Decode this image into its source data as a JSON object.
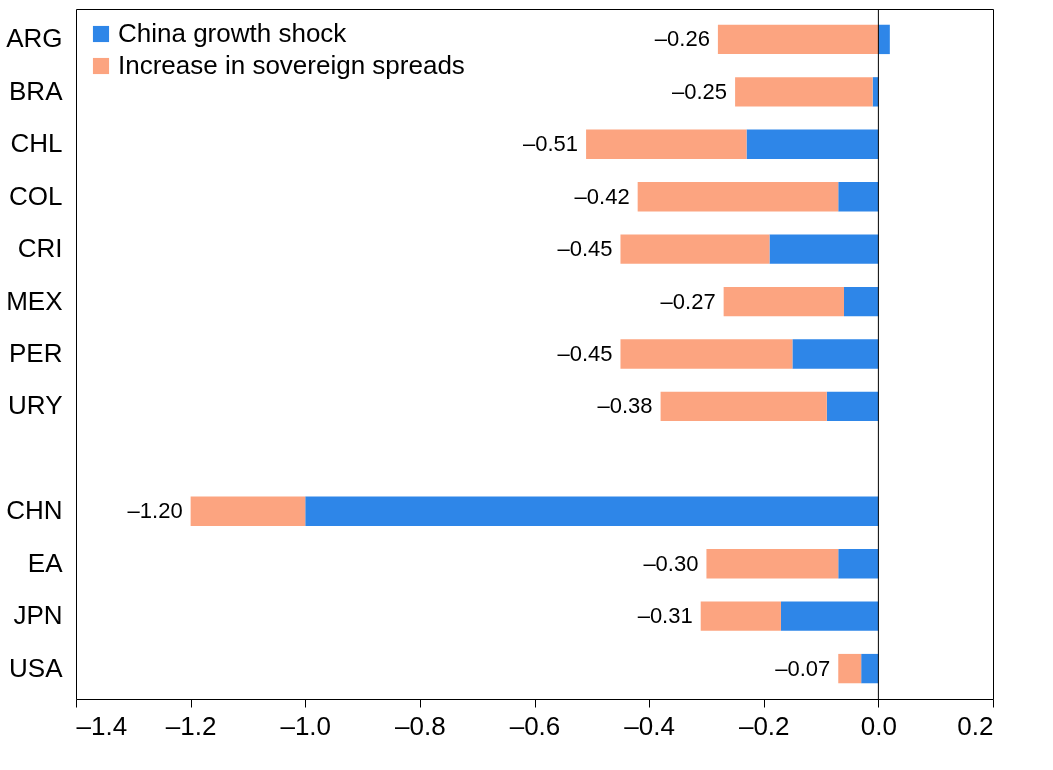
{
  "chart_data": {
    "type": "bar",
    "orientation": "horizontal",
    "stacked": true,
    "categories": [
      "ARG",
      "BRA",
      "CHL",
      "COL",
      "CRI",
      "MEX",
      "PER",
      "URY",
      null,
      "CHN",
      "EA",
      "JPN",
      "USA"
    ],
    "series": [
      {
        "name": "China growth shock",
        "color": "#2e86e8",
        "values": [
          0.02,
          -0.01,
          -0.23,
          -0.07,
          -0.19,
          -0.06,
          -0.15,
          -0.09,
          null,
          -1.0,
          -0.07,
          -0.17,
          -0.03
        ]
      },
      {
        "name": "Increase in sovereign spreads",
        "color": "#fca480",
        "values": [
          -0.28,
          -0.24,
          -0.28,
          -0.35,
          -0.26,
          -0.21,
          -0.3,
          -0.29,
          null,
          -0.2,
          -0.23,
          -0.14,
          -0.04
        ]
      }
    ],
    "totals": [
      "–0.26",
      "–0.25",
      "–0.51",
      "–0.42",
      "–0.45",
      "–0.27",
      "–0.45",
      "–0.38",
      null,
      "–1.20",
      "–0.30",
      "–0.31",
      "–0.07"
    ],
    "xlim": [
      -1.4,
      0.2
    ],
    "xticks": [
      {
        "value": -1.4,
        "label": "–1.4"
      },
      {
        "value": -1.2,
        "label": "–1.2"
      },
      {
        "value": -1.0,
        "label": "–1.0"
      },
      {
        "value": -0.8,
        "label": "–0.8"
      },
      {
        "value": -0.6,
        "label": "–0.6"
      },
      {
        "value": -0.4,
        "label": "–0.4"
      },
      {
        "value": -0.2,
        "label": "–0.2"
      },
      {
        "value": 0,
        "label": "0.0"
      },
      {
        "value": 0.2,
        "label": "0.2"
      }
    ],
    "ref_lines": [
      {
        "axis": "x",
        "value": 0,
        "label": null
      }
    ],
    "grid": false,
    "legend": "top left"
  }
}
